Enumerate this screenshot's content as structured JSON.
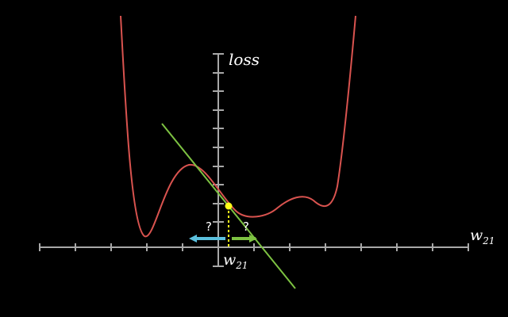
{
  "labels": {
    "y_axis": "loss",
    "x_axis_base": "w",
    "x_axis_sub": "21",
    "point_base": "w",
    "point_sub": "21",
    "question_left": "?",
    "question_right": "?"
  },
  "colors": {
    "background": "#000000",
    "axis": "#a8a8a8",
    "loss_curve": "#d9534f",
    "tangent": "#7dc242",
    "point": "#ffff1a",
    "dotted_guide": "#ffff1a",
    "arrow_left": "#5bc0de",
    "arrow_right": "#7dc242"
  }
}
